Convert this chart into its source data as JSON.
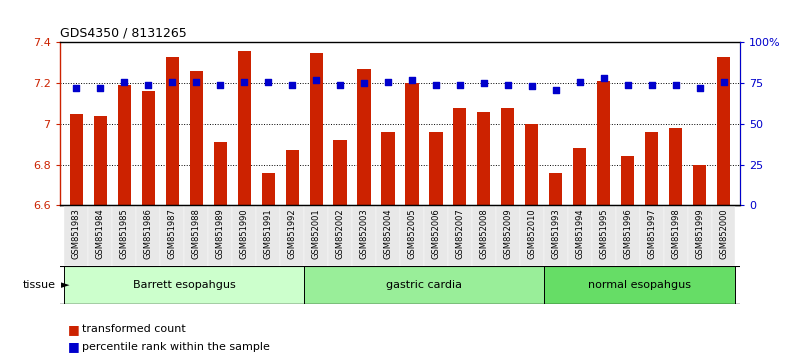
{
  "title": "GDS4350 / 8131265",
  "samples": [
    "GSM851983",
    "GSM851984",
    "GSM851985",
    "GSM851986",
    "GSM851987",
    "GSM851988",
    "GSM851989",
    "GSM851990",
    "GSM851991",
    "GSM851992",
    "GSM852001",
    "GSM852002",
    "GSM852003",
    "GSM852004",
    "GSM852005",
    "GSM852006",
    "GSM852007",
    "GSM852008",
    "GSM852009",
    "GSM852010",
    "GSM851993",
    "GSM851994",
    "GSM851995",
    "GSM851996",
    "GSM851997",
    "GSM851998",
    "GSM851999",
    "GSM852000"
  ],
  "bar_values": [
    7.05,
    7.04,
    7.19,
    7.16,
    7.33,
    7.26,
    6.91,
    7.36,
    6.76,
    6.87,
    7.35,
    6.92,
    7.27,
    6.96,
    7.2,
    6.96,
    7.08,
    7.06,
    7.08,
    7.0,
    6.76,
    6.88,
    7.21,
    6.84,
    6.96,
    6.98,
    6.8,
    7.33
  ],
  "percentile_values": [
    72,
    72,
    76,
    74,
    76,
    76,
    74,
    76,
    76,
    74,
    77,
    74,
    75,
    76,
    77,
    74,
    74,
    75,
    74,
    73,
    71,
    76,
    78,
    74,
    74,
    74,
    72,
    76
  ],
  "groups": [
    {
      "label": "Barrett esopahgus",
      "start": 0,
      "end": 10,
      "color": "#ccffcc"
    },
    {
      "label": "gastric cardia",
      "start": 10,
      "end": 20,
      "color": "#99ee99"
    },
    {
      "label": "normal esopahgus",
      "start": 20,
      "end": 28,
      "color": "#66dd66"
    }
  ],
  "ylim_left": [
    6.6,
    7.4
  ],
  "ylim_right": [
    0,
    100
  ],
  "bar_color": "#cc2200",
  "dot_color": "#0000cc",
  "tick_color_left": "#cc2200",
  "tick_color_right": "#0000cc",
  "tissue_label": "tissue",
  "legend_bar_label": "transformed count",
  "legend_dot_label": "percentile rank within the sample"
}
